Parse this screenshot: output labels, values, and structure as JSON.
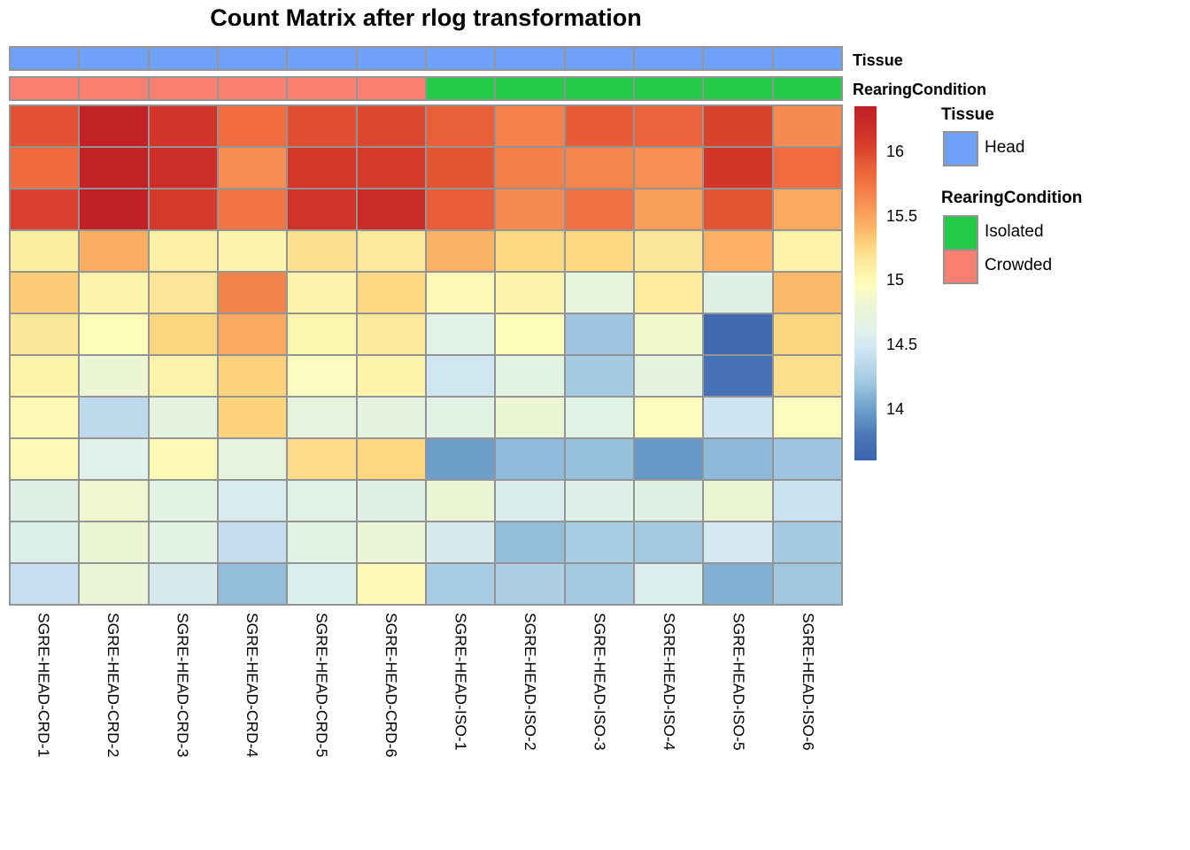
{
  "title": "Count Matrix after rlog transformation",
  "annotation_rows": {
    "tissue": {
      "side_label": "Tissue"
    },
    "rearing": {
      "side_label": "RearingCondition"
    }
  },
  "legend": {
    "tissue": {
      "title": "Tissue",
      "items": [
        {
          "label": "Head",
          "color": "#6FA1FB"
        }
      ]
    },
    "rearing": {
      "title": "RearingCondition",
      "items": [
        {
          "label": "Isolated",
          "color": "#22CB45"
        },
        {
          "label": "Crowded",
          "color": "#FA8072"
        }
      ]
    }
  },
  "colorbar": {
    "tick_labels": [
      "16",
      "15.5",
      "15",
      "14.5",
      "14"
    ],
    "tick_values": [
      16,
      15.5,
      15,
      14.5,
      14
    ]
  },
  "colors": {
    "head_blue": "#6FA1FB",
    "crowded_salmon": "#FA8072",
    "isolated_green": "#22CB45",
    "grid_line": "#949494"
  },
  "chart_data": {
    "type": "heatmap",
    "title": "Count Matrix after rlog transformation",
    "columns": [
      "SGRE-HEAD-CRD-1",
      "SGRE-HEAD-CRD-2",
      "SGRE-HEAD-CRD-3",
      "SGRE-HEAD-CRD-4",
      "SGRE-HEAD-CRD-5",
      "SGRE-HEAD-CRD-6",
      "SGRE-HEAD-ISO-1",
      "SGRE-HEAD-ISO-2",
      "SGRE-HEAD-ISO-3",
      "SGRE-HEAD-ISO-4",
      "SGRE-HEAD-ISO-5",
      "SGRE-HEAD-ISO-6"
    ],
    "column_tissue": [
      "Head",
      "Head",
      "Head",
      "Head",
      "Head",
      "Head",
      "Head",
      "Head",
      "Head",
      "Head",
      "Head",
      "Head"
    ],
    "column_rearing": [
      "Crowded",
      "Crowded",
      "Crowded",
      "Crowded",
      "Crowded",
      "Crowded",
      "Isolated",
      "Isolated",
      "Isolated",
      "Isolated",
      "Isolated",
      "Isolated"
    ],
    "rows_shown_without_names": 12,
    "matrix": [
      [
        15.95,
        16.32,
        16.12,
        15.78,
        15.96,
        16.0,
        15.88,
        15.68,
        15.9,
        15.85,
        16.03,
        15.63
      ],
      [
        15.8,
        16.33,
        16.17,
        15.62,
        16.1,
        16.07,
        15.94,
        15.69,
        15.66,
        15.61,
        16.11,
        15.79
      ],
      [
        16.05,
        16.34,
        16.08,
        15.74,
        16.13,
        16.22,
        15.89,
        15.63,
        15.77,
        15.53,
        15.94,
        15.47
      ],
      [
        15.11,
        15.44,
        15.1,
        15.06,
        15.21,
        15.15,
        15.42,
        15.26,
        15.26,
        15.16,
        15.43,
        15.08
      ],
      [
        15.31,
        15.06,
        15.18,
        15.67,
        15.05,
        15.26,
        15.01,
        15.05,
        14.72,
        15.13,
        14.62,
        15.39
      ],
      [
        15.16,
        14.98,
        15.27,
        15.46,
        15.04,
        15.14,
        14.63,
        14.97,
        14.19,
        14.86,
        13.66,
        15.27
      ],
      [
        15.07,
        14.79,
        15.06,
        15.29,
        14.94,
        15.07,
        14.47,
        14.67,
        14.22,
        14.68,
        13.73,
        15.22
      ],
      [
        15.0,
        14.36,
        14.68,
        15.28,
        14.69,
        14.68,
        14.64,
        14.79,
        14.63,
        14.96,
        14.46,
        14.95
      ],
      [
        15.01,
        14.61,
        14.99,
        14.71,
        15.23,
        15.26,
        13.99,
        14.14,
        14.17,
        13.96,
        14.13,
        14.19
      ],
      [
        14.62,
        14.83,
        14.66,
        14.54,
        14.63,
        14.62,
        14.8,
        14.55,
        14.6,
        14.62,
        14.79,
        14.44
      ],
      [
        14.57,
        14.79,
        14.65,
        14.4,
        14.64,
        14.77,
        14.53,
        14.15,
        14.24,
        14.22,
        14.5,
        14.22
      ],
      [
        14.41,
        14.76,
        14.53,
        14.15,
        14.56,
        14.99,
        14.24,
        14.27,
        14.22,
        14.56,
        14.08,
        14.2
      ]
    ],
    "colorscale": {
      "domain": [
        13.6,
        16.35
      ],
      "legend_ticks": [
        14,
        14.5,
        15,
        15.5,
        16
      ],
      "stops": [
        [
          13.6,
          "#3A64AD"
        ],
        [
          13.8,
          "#4C78B8"
        ],
        [
          13.95,
          "#6297C6"
        ],
        [
          14.05,
          "#79AAD0"
        ],
        [
          14.2,
          "#A0C7E0"
        ],
        [
          14.35,
          "#BCD8EA"
        ],
        [
          14.48,
          "#D2E7F2"
        ],
        [
          14.6,
          "#DEF1E9"
        ],
        [
          14.72,
          "#E7F4DC"
        ],
        [
          14.85,
          "#F1F8CF"
        ],
        [
          14.97,
          "#FEFDBB"
        ],
        [
          15.08,
          "#FDF2A7"
        ],
        [
          15.18,
          "#FDE597"
        ],
        [
          15.28,
          "#FDD47C"
        ],
        [
          15.4,
          "#FBB667"
        ],
        [
          15.52,
          "#F99F5B"
        ],
        [
          15.65,
          "#F6874E"
        ],
        [
          15.78,
          "#F16D41"
        ],
        [
          15.9,
          "#E75C36"
        ],
        [
          16.0,
          "#DC472E"
        ],
        [
          16.12,
          "#D23429"
        ],
        [
          16.25,
          "#C62827"
        ],
        [
          16.35,
          "#C02026"
        ]
      ]
    }
  }
}
